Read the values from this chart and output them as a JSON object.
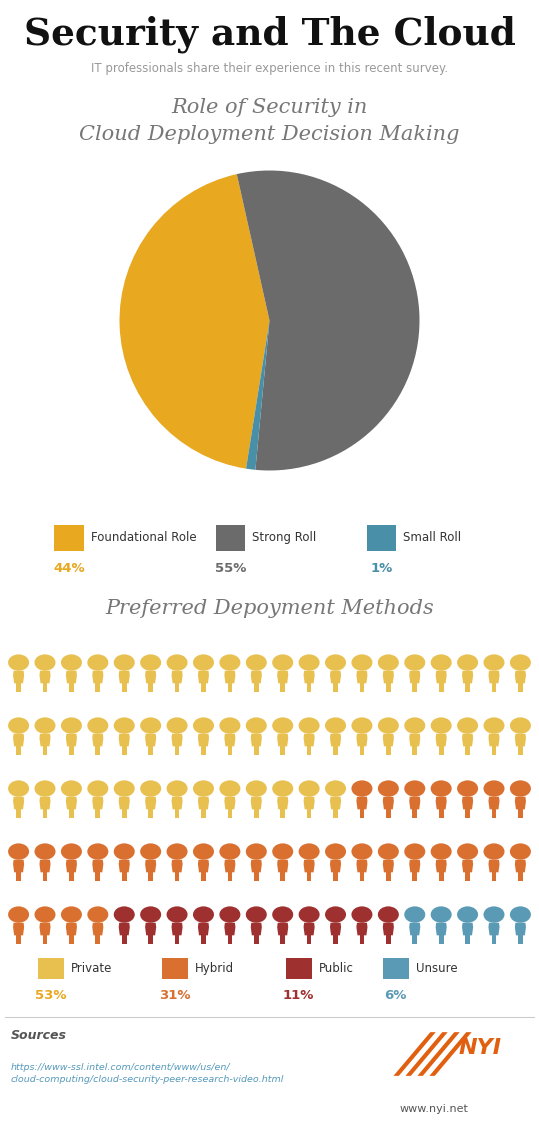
{
  "title": "Security and The Cloud",
  "subtitle": "IT professionals share their experience in this recent survey.",
  "pie_title": "Role of Security in\nCloud Deployment Decision Making",
  "pie_values": [
    44,
    55,
    1
  ],
  "pie_labels": [
    "Foundational Role",
    "Strong Roll",
    "Small Roll"
  ],
  "pie_colors": [
    "#E8A820",
    "#6B6B6B",
    "#4A8FA8"
  ],
  "pie_pcts": [
    "44%",
    "55%",
    "1%"
  ],
  "pie_pct_colors": [
    "#E8A820",
    "#6B6B6B",
    "#4A8FA8"
  ],
  "pie_startangle": 261,
  "waffle_title": "Preferred Depoyment Methods",
  "waffle_values": [
    53,
    31,
    11,
    6
  ],
  "waffle_labels": [
    "Private",
    "Hybrid",
    "Public",
    "Unsure"
  ],
  "waffle_colors": [
    "#E8C050",
    "#D97030",
    "#9E3030",
    "#5A9AB5"
  ],
  "waffle_pcts": [
    "53%",
    "31%",
    "11%",
    "6%"
  ],
  "waffle_pct_colors": [
    "#E8A820",
    "#D97030",
    "#9E3030",
    "#5A9AB5"
  ],
  "sources_title": "Sources",
  "sources_url": "https://www-ssl.intel.com/content/www/us/en/\ncloud-computing/cloud-security-peer-research-video.html",
  "nyi_text": "www.nyi.net",
  "nyi_logo_color": "#E06010",
  "bg_color": "#FFFFFF",
  "title_color": "#111111",
  "subtitle_color": "#999999"
}
